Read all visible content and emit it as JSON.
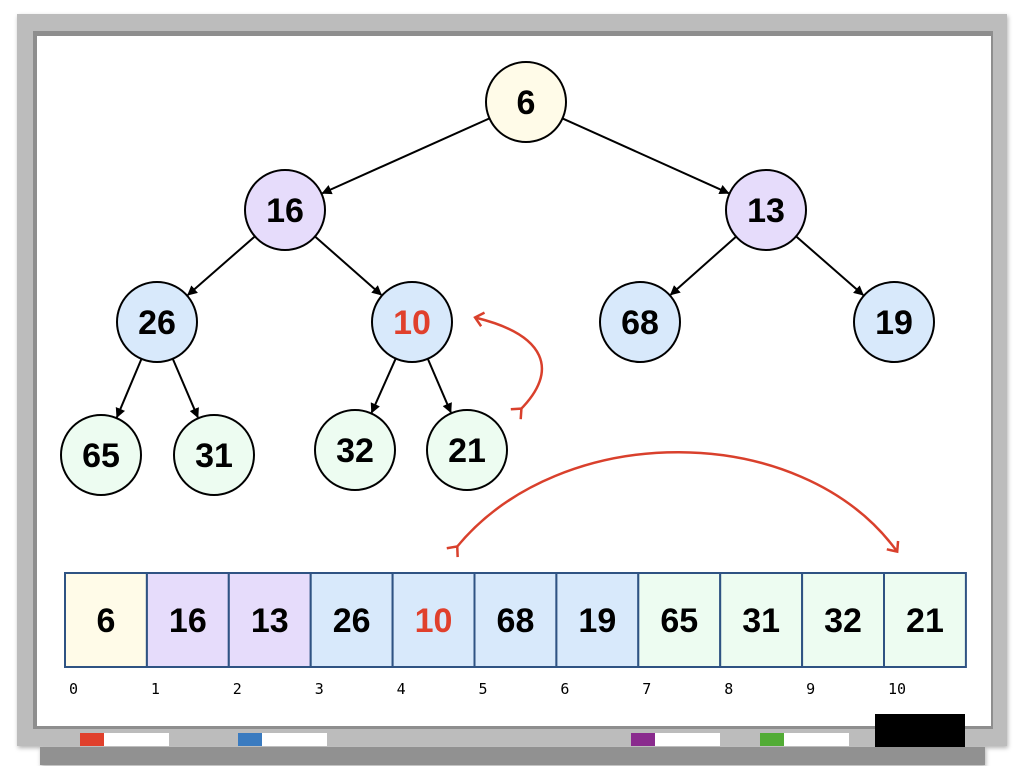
{
  "colors": {
    "root": "#fffbe8",
    "level1": "#e6dcfb",
    "level2": "#d8e9fb",
    "level3": "#edfcf1",
    "highlight_text": "#e0402c",
    "arrow_red": "#d9402c",
    "cell_border": "#2f5383",
    "markers": [
      "#e0402c",
      "#3a7bc0",
      "#8a2b8e",
      "#52ac35",
      "#000000"
    ]
  },
  "tree": {
    "nodes": [
      {
        "value": "6",
        "level": 0
      },
      {
        "value": "16",
        "level": 1
      },
      {
        "value": "13",
        "level": 1
      },
      {
        "value": "26",
        "level": 2
      },
      {
        "value": "10",
        "level": 2,
        "highlight": true
      },
      {
        "value": "68",
        "level": 2
      },
      {
        "value": "19",
        "level": 2
      },
      {
        "value": "65",
        "level": 3
      },
      {
        "value": "31",
        "level": 3
      },
      {
        "value": "32",
        "level": 3
      },
      {
        "value": "21",
        "level": 3
      }
    ],
    "edges": [
      [
        0,
        1
      ],
      [
        0,
        2
      ],
      [
        1,
        3
      ],
      [
        1,
        4
      ],
      [
        2,
        5
      ],
      [
        2,
        6
      ],
      [
        3,
        7
      ],
      [
        3,
        8
      ],
      [
        4,
        9
      ],
      [
        4,
        10
      ]
    ]
  },
  "array": {
    "cells": [
      {
        "value": "6",
        "level": 0
      },
      {
        "value": "16",
        "level": 1
      },
      {
        "value": "13",
        "level": 1
      },
      {
        "value": "26",
        "level": 2
      },
      {
        "value": "10",
        "level": 2,
        "highlight": true
      },
      {
        "value": "68",
        "level": 2
      },
      {
        "value": "19",
        "level": 2
      },
      {
        "value": "65",
        "level": 3
      },
      {
        "value": "31",
        "level": 3
      },
      {
        "value": "32",
        "level": 3
      },
      {
        "value": "21",
        "level": 3
      }
    ],
    "indices": [
      "0",
      "1",
      "2",
      "3",
      "4",
      "5",
      "6",
      "7",
      "8",
      "9",
      "10"
    ]
  }
}
